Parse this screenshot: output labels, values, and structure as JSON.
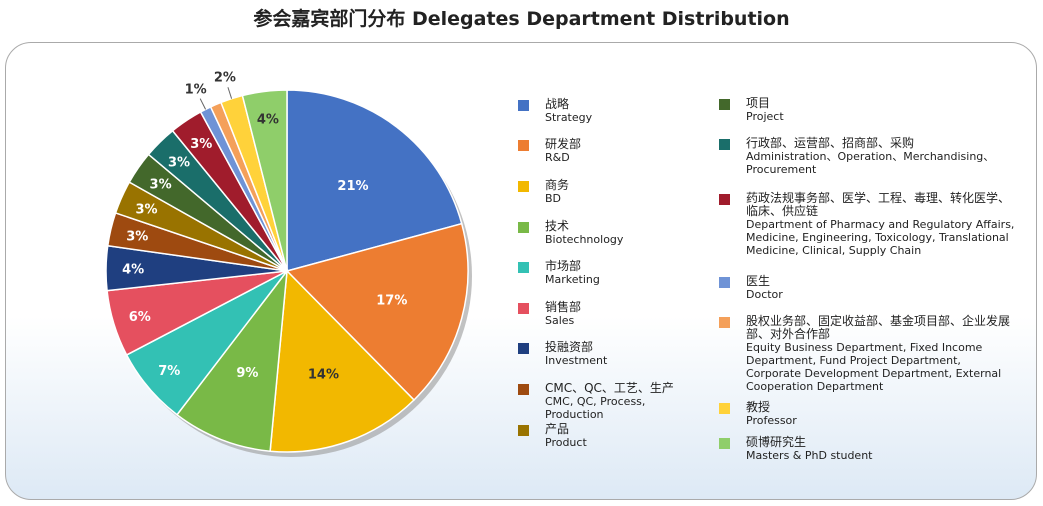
{
  "chart_data": {
    "type": "pie",
    "title": "参会嘉宾部门分布  Delegates Department Distribution",
    "categories": [
      "战略",
      "研发部",
      "商务",
      "技术",
      "市场部",
      "销售部",
      "投融资部",
      "CMC、QC、工艺、生产",
      "产品",
      "项目",
      "行政部、运营部、招商部、采购",
      "药政法规事务部、医学、工程、毒理、转化医学、临床、供应链",
      "医生",
      "股权业务部、固定收益部、基金项目部、企业发展部、对外合作部",
      "教授",
      "硕博研究生"
    ],
    "categories_en": [
      "Strategy",
      "R&D",
      "BD",
      "Biotechnology",
      "Marketing",
      "Sales",
      "Investment",
      "CMC, QC, Process, Production",
      "Product",
      "Project",
      "Administration、Operation、Merchandising、Procurement",
      "Department of Pharmacy and Regulatory Affairs, Medicine, Engineering, Toxicology, Translational Medicine, Clinical, Supply Chain",
      "Doctor",
      "Equity Business Department, Fixed Income Department, Fund Project Department, Corporate Development Department, External Cooperation Department",
      "Professor",
      "Masters & PhD student"
    ],
    "values": [
      21,
      17,
      14,
      9,
      7,
      6,
      4,
      3,
      3,
      3,
      3,
      3,
      1,
      1,
      2,
      4
    ],
    "value_labels": [
      "21%",
      "17%",
      "14%",
      "9%",
      "7%",
      "6%",
      "4%",
      "3%",
      "3%",
      "3%",
      "3%",
      "3%",
      "1%",
      "",
      "2%",
      "4%"
    ],
    "colors": [
      "#4472c4",
      "#ed7d31",
      "#f2b800",
      "#79b947",
      "#33c1b4",
      "#e5505f",
      "#1f3f80",
      "#9e4a10",
      "#997300",
      "#43682b",
      "#1a6e6a",
      "#a01c2c",
      "#6f93d6",
      "#f4a05a",
      "#ffd23a",
      "#8fce6a"
    ]
  }
}
